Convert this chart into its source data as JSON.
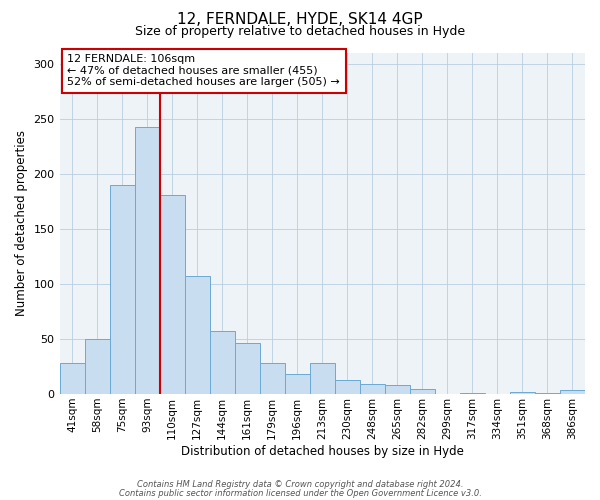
{
  "title": "12, FERNDALE, HYDE, SK14 4GP",
  "subtitle": "Size of property relative to detached houses in Hyde",
  "xlabel": "Distribution of detached houses by size in Hyde",
  "ylabel": "Number of detached properties",
  "bar_labels": [
    "41sqm",
    "58sqm",
    "75sqm",
    "93sqm",
    "110sqm",
    "127sqm",
    "144sqm",
    "161sqm",
    "179sqm",
    "196sqm",
    "213sqm",
    "230sqm",
    "248sqm",
    "265sqm",
    "282sqm",
    "299sqm",
    "317sqm",
    "334sqm",
    "351sqm",
    "368sqm",
    "386sqm"
  ],
  "bar_values": [
    28,
    50,
    190,
    242,
    181,
    107,
    57,
    46,
    28,
    18,
    28,
    13,
    9,
    8,
    5,
    0,
    1,
    0,
    2,
    1,
    4
  ],
  "bar_color": "#c8ddf0",
  "bar_edge_color": "#6aaad4",
  "vline_color": "#cc0000",
  "vline_index": 4,
  "ylim": [
    0,
    310
  ],
  "yticks": [
    0,
    50,
    100,
    150,
    200,
    250,
    300
  ],
  "annotation_text": "12 FERNDALE: 106sqm\n← 47% of detached houses are smaller (455)\n52% of semi-detached houses are larger (505) →",
  "annotation_box_facecolor": "#ffffff",
  "annotation_box_edgecolor": "#cc0000",
  "footer1": "Contains HM Land Registry data © Crown copyright and database right 2024.",
  "footer2": "Contains public sector information licensed under the Open Government Licence v3.0.",
  "bg_color": "#eef3f8",
  "grid_color": "#b8cfe0",
  "title_fontsize": 11,
  "subtitle_fontsize": 9,
  "ylabel_fontsize": 8.5,
  "xlabel_fontsize": 8.5,
  "tick_fontsize": 7.5,
  "annot_fontsize": 8,
  "footer_fontsize": 6
}
